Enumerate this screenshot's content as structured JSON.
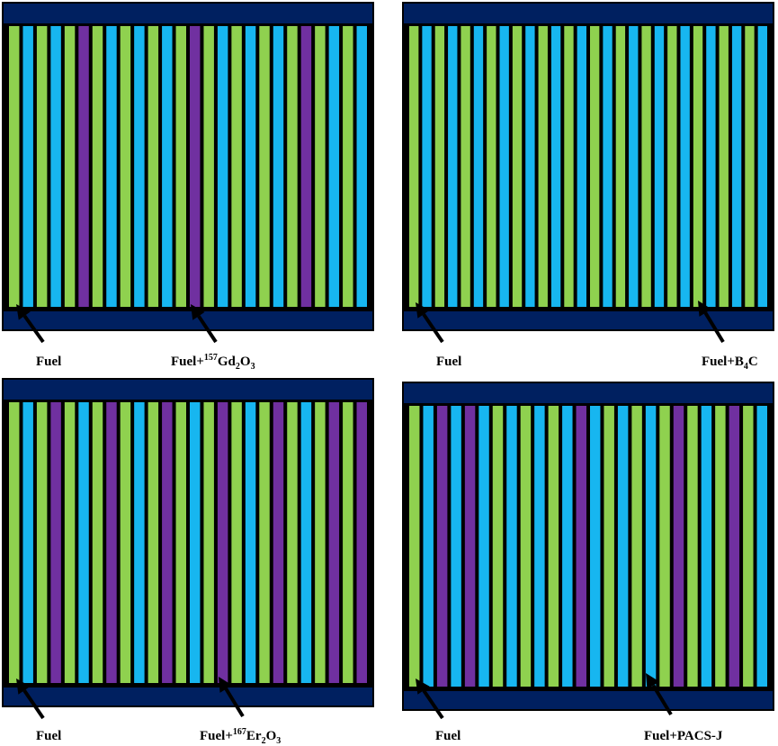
{
  "colors": {
    "fuel": "#8fd14f",
    "coolant": "#17b6f0",
    "absorber": "#7030a0",
    "plate": "#002060",
    "frame": "#000000"
  },
  "panels": [
    {
      "fuel_label": "Fuel",
      "absorber_label": {
        "base": "Fuel+",
        "sup": "157",
        "p1": "Gd",
        "sub1": "2",
        "p2": "O",
        "sub2": "3",
        "p3": ""
      },
      "rods": [
        "fuel",
        "coolant",
        "fuel",
        "coolant",
        "fuel",
        "absorber",
        "fuel",
        "coolant",
        "fuel",
        "coolant",
        "fuel",
        "coolant",
        "fuel",
        "absorber",
        "fuel",
        "coolant",
        "fuel",
        "coolant",
        "fuel",
        "coolant",
        "fuel",
        "absorber",
        "fuel",
        "coolant",
        "fuel",
        "coolant"
      ]
    },
    {
      "fuel_label": "Fuel",
      "absorber_label": {
        "base": "Fuel+",
        "sup": "",
        "p1": "B",
        "sub1": "4",
        "p2": "C",
        "sub2": "",
        "p3": ""
      },
      "rods": [
        "fuel",
        "coolant",
        "fuel",
        "coolant",
        "fuel",
        "coolant",
        "fuel",
        "coolant",
        "fuel",
        "coolant",
        "fuel",
        "coolant",
        "fuel",
        "coolant",
        "fuel",
        "coolant",
        "fuel",
        "coolant",
        "fuel",
        "coolant",
        "fuel",
        "coolant",
        "fuel",
        "coolant",
        "fuel",
        "coolant",
        "fuel",
        "coolant"
      ]
    },
    {
      "fuel_label": "Fuel",
      "absorber_label": {
        "base": "Fuel+",
        "sup": "167",
        "p1": "Er",
        "sub1": "2",
        "p2": "O",
        "sub2": "3",
        "p3": ""
      },
      "rods": [
        "fuel",
        "coolant",
        "fuel",
        "absorber",
        "fuel",
        "coolant",
        "fuel",
        "absorber",
        "fuel",
        "coolant",
        "fuel",
        "absorber",
        "fuel",
        "coolant",
        "fuel",
        "absorber",
        "fuel",
        "coolant",
        "fuel",
        "absorber",
        "fuel",
        "coolant",
        "fuel",
        "absorber",
        "fuel",
        "absorber"
      ]
    },
    {
      "fuel_label": "Fuel",
      "absorber_label": {
        "base": "Fuel+PACS-J",
        "sup": "",
        "p1": "",
        "sub1": "",
        "p2": "",
        "sub2": "",
        "p3": ""
      },
      "rods": [
        "fuel",
        "coolant",
        "absorber",
        "coolant",
        "absorber",
        "coolant",
        "fuel",
        "coolant",
        "fuel",
        "coolant",
        "fuel",
        "coolant",
        "absorber",
        "coolant",
        "fuel",
        "coolant",
        "fuel",
        "coolant",
        "fuel",
        "absorber",
        "fuel",
        "coolant",
        "fuel",
        "absorber",
        "fuel",
        "coolant"
      ]
    }
  ]
}
